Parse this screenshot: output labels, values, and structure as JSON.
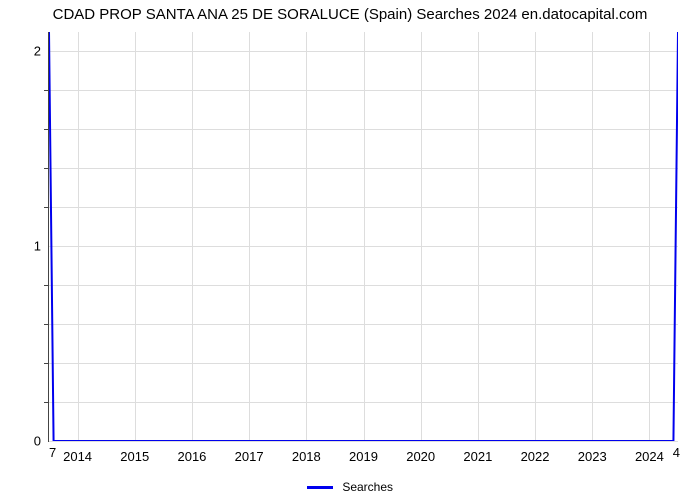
{
  "chart": {
    "type": "line",
    "title": "CDAD PROP SANTA ANA 25 DE SORALUCE (Spain) Searches 2024 en.datocapital.com",
    "title_fontsize": 15,
    "background_color": "#ffffff",
    "grid_color": "#dddddd",
    "axis_color": "#444444",
    "x": {
      "ticks": [
        2014,
        2015,
        2016,
        2017,
        2018,
        2019,
        2020,
        2021,
        2022,
        2023,
        2024
      ],
      "range_min": 2013.5,
      "range_max": 2024.5
    },
    "y": {
      "major_ticks": [
        0,
        1,
        2
      ],
      "minor_tick_count_between": 4,
      "range_min": 0,
      "range_max": 2.1
    },
    "series": {
      "label": "Searches",
      "color": "#0000ee",
      "line_width": 2,
      "points_x": [
        2013.5,
        2013.58,
        2024.42,
        2024.5
      ],
      "points_y": [
        7,
        0,
        0,
        4
      ],
      "y_clamp_for_plot": true,
      "left_spike_value": 7,
      "right_spike_value": 4
    },
    "legend": {
      "label": "Searches",
      "swatch_color": "#0000ee"
    }
  }
}
